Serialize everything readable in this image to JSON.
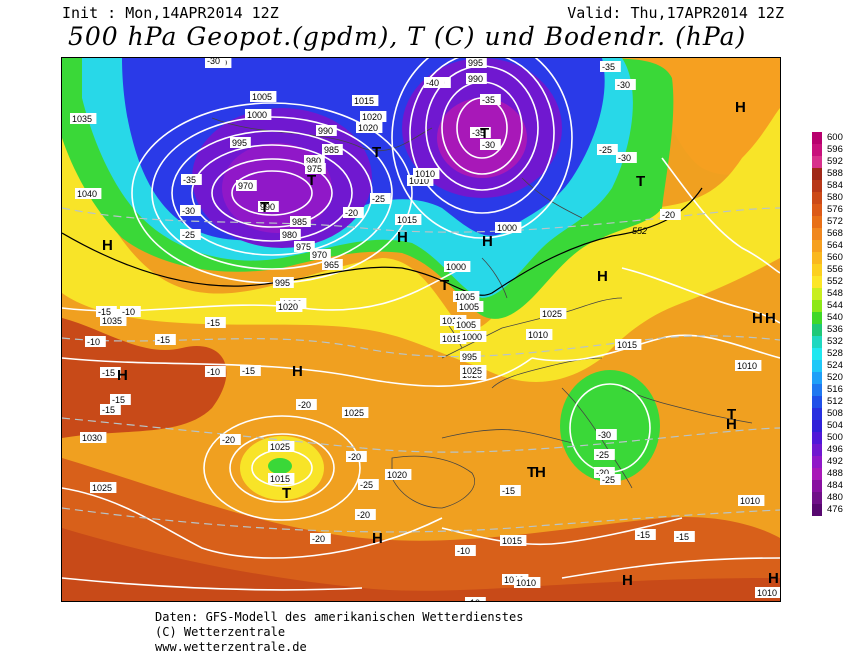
{
  "header": {
    "init": "Init : Mon,14APR2014 12Z",
    "valid": "Valid: Thu,17APR2014 12Z",
    "title": "500 hPa Geopot.(gpdm), T (C) und Bodendr. (hPa)"
  },
  "footer": {
    "line1": "Daten: GFS-Modell des amerikanischen Wetterdienstes",
    "line2": "(C) Wetterzentrale",
    "line3": "www.wetterzentrale.de"
  },
  "legend": [
    {
      "value": "600",
      "color": "#b8006e"
    },
    {
      "value": "596",
      "color": "#c8107c"
    },
    {
      "value": "592",
      "color": "#d8308c"
    },
    {
      "value": "588",
      "color": "#a02818"
    },
    {
      "value": "584",
      "color": "#b83818"
    },
    {
      "value": "580",
      "color": "#cc4a18"
    },
    {
      "value": "576",
      "color": "#dc5a18"
    },
    {
      "value": "572",
      "color": "#e87018"
    },
    {
      "value": "568",
      "color": "#f08820"
    },
    {
      "value": "564",
      "color": "#f6a020"
    },
    {
      "value": "560",
      "color": "#fab820"
    },
    {
      "value": "556",
      "color": "#fcd020"
    },
    {
      "value": "552",
      "color": "#fce628"
    },
    {
      "value": "548",
      "color": "#c8ee20"
    },
    {
      "value": "544",
      "color": "#8ce818"
    },
    {
      "value": "540",
      "color": "#40d828"
    },
    {
      "value": "536",
      "color": "#20c878"
    },
    {
      "value": "532",
      "color": "#20d8c0"
    },
    {
      "value": "528",
      "color": "#20e8f0"
    },
    {
      "value": "524",
      "color": "#20c8f8"
    },
    {
      "value": "520",
      "color": "#20a0f8"
    },
    {
      "value": "516",
      "color": "#2078f0"
    },
    {
      "value": "512",
      "color": "#2050e8"
    },
    {
      "value": "508",
      "color": "#2830e0"
    },
    {
      "value": "504",
      "color": "#3020d8"
    },
    {
      "value": "500",
      "color": "#5018d8"
    },
    {
      "value": "496",
      "color": "#7018d0"
    },
    {
      "value": "492",
      "color": "#9018c8"
    },
    {
      "value": "488",
      "color": "#a818b8"
    },
    {
      "value": "484",
      "color": "#8810a0"
    },
    {
      "value": "480",
      "color": "#701088"
    },
    {
      "value": "476",
      "color": "#580870"
    }
  ],
  "map": {
    "colors": {
      "purple": "#8a1ee0",
      "blue": "#2a3ae8",
      "cyan": "#28d8e8",
      "green": "#3ad838",
      "yellow": "#f8e428",
      "orange": "#f0a020",
      "darkorange": "#e07818",
      "red": "#c84a18",
      "isobar": "#ffffff"
    },
    "pressure_labels": [
      "1010",
      "1005",
      "1000",
      "995",
      "990",
      "985",
      "980",
      "975",
      "970",
      "1035",
      "1040",
      "1015",
      "1020",
      "1020",
      "1010",
      "995",
      "990",
      "985",
      "980",
      "975",
      "970",
      "965",
      "995",
      "990",
      "1000",
      "1015",
      "1010",
      "1005",
      "1000",
      "1010",
      "1015",
      "1020",
      "1025",
      "1015",
      "1010",
      "1030",
      "1025",
      "1020",
      "1015",
      "1010",
      "1025",
      "1020",
      "1020",
      "1025",
      "1015",
      "1010",
      "1010",
      "1010",
      "1005",
      "1035",
      "1025",
      "1010",
      "1000",
      "995",
      "1005",
      "1020",
      "1030",
      "1035"
    ],
    "temp_labels": [
      "-30",
      "-40",
      "-35",
      "-30",
      "-25",
      "-30",
      "-35",
      "-40",
      "-35",
      "-30",
      "-25",
      "-20",
      "-25",
      "-20",
      "-15",
      "-15",
      "-10",
      "-15",
      "-15",
      "-15",
      "-20",
      "-15",
      "-20",
      "-20",
      "-15",
      "-10",
      "-10",
      "-15",
      "-15",
      "-20",
      "-25",
      "-30",
      "-25",
      "-20",
      "-15",
      "-10",
      "-10",
      "-25",
      "-20",
      "-15",
      "-35",
      "-30"
    ],
    "center_labels": [
      "H",
      "H",
      "H",
      "H",
      "H",
      "H",
      "H",
      "H",
      "H",
      "T",
      "T",
      "T",
      "T",
      "T",
      "T",
      "T",
      "T",
      "T",
      "H",
      "H",
      "H",
      "H",
      "H"
    ],
    "contour_552": "552"
  }
}
